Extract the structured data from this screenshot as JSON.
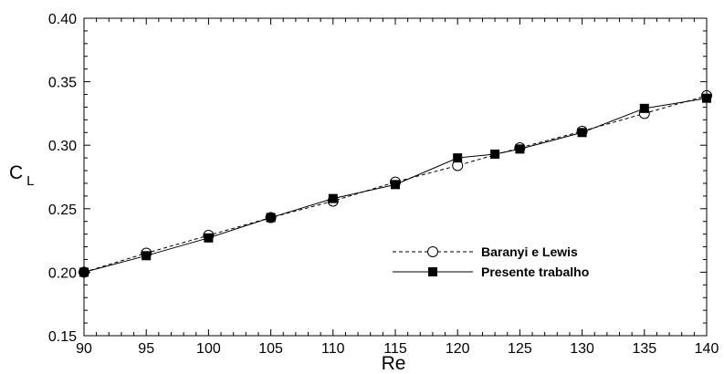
{
  "chart_data": {
    "type": "line",
    "title": "",
    "xlabel": "Re",
    "ylabel_main": "C",
    "ylabel_sub": "L",
    "xlim": [
      90,
      140
    ],
    "ylim": [
      0.15,
      0.4
    ],
    "xticks": [
      90,
      95,
      100,
      105,
      110,
      115,
      120,
      125,
      130,
      135,
      140
    ],
    "yticks": [
      0.15,
      0.2,
      0.25,
      0.3,
      0.35,
      0.4
    ],
    "xtick_labels": [
      "90",
      "95",
      "100",
      "105",
      "110",
      "115",
      "120",
      "125",
      "130",
      "135",
      "140"
    ],
    "ytick_labels": [
      "0.15",
      "0.20",
      "0.25",
      "0.30",
      "0.35",
      "0.40"
    ],
    "grid": false,
    "legend_position": "lower-right",
    "series": [
      {
        "name": "Baranyi e Lewis",
        "line": "dashed",
        "marker": "open-circle",
        "color": "#000000",
        "x": [
          90,
          95,
          100,
          105,
          110,
          115,
          120,
          125,
          130,
          135,
          140
        ],
        "y": [
          0.2,
          0.215,
          0.229,
          0.243,
          0.256,
          0.271,
          0.284,
          0.298,
          0.311,
          0.325,
          0.339
        ]
      },
      {
        "name": "Presente trabalho",
        "line": "solid",
        "marker": "filled-square",
        "color": "#000000",
        "x": [
          90,
          95,
          100,
          105,
          110,
          115,
          120,
          123,
          125,
          130,
          135,
          140
        ],
        "y": [
          0.2,
          0.213,
          0.227,
          0.243,
          0.258,
          0.269,
          0.29,
          0.293,
          0.297,
          0.31,
          0.329,
          0.337
        ]
      }
    ]
  }
}
